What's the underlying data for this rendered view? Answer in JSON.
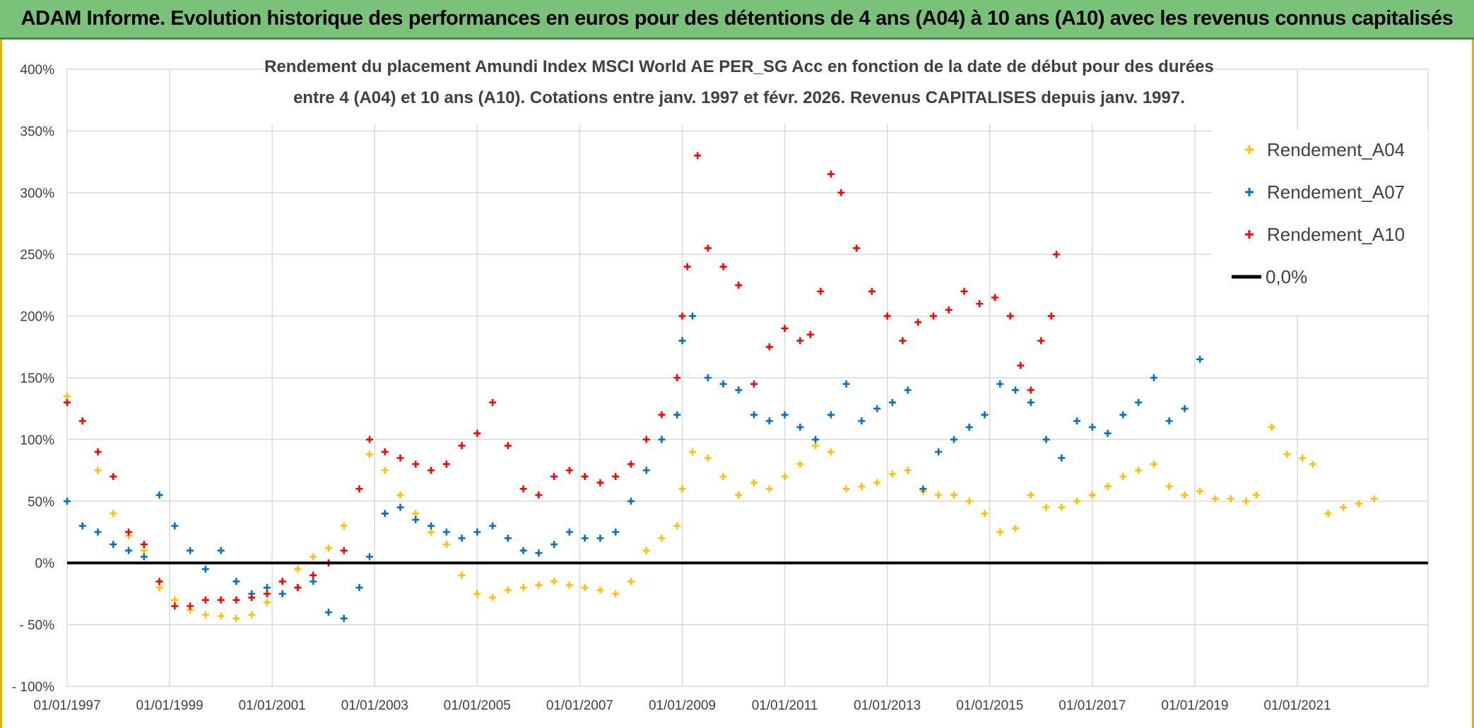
{
  "banner": {
    "text": "ADAM Informe. Evolution historique des performances en euros pour des détentions de 4 ans (A04) à 10 ans (A10) avec les revenus connus capitalisés"
  },
  "colors": {
    "banner_bg": "#7ac27a",
    "A04": "#ffc000",
    "A07": "#0070c0",
    "A10": "#ff0000",
    "zero_line": "#000000",
    "grid": "#d9d9d9"
  },
  "chart_data": {
    "type": "scatter",
    "title_lines": [
      "Rendement du placement Amundi Index MSCI World AE PER_SG Acc en fonction de la date de début pour des durées",
      "entre 4 (A04) et 10 ans (A10). Cotations entre janv. 1997 et févr. 2026. Revenus CAPITALISES depuis janv. 1997."
    ],
    "xlabel": "",
    "ylabel": "",
    "x_tick_labels": [
      "01/01/1997",
      "01/01/1999",
      "01/01/2001",
      "01/01/2003",
      "01/01/2005",
      "01/01/2007",
      "01/01/2009",
      "01/01/2011",
      "01/01/2013",
      "01/01/2015",
      "01/01/2017",
      "01/01/2019",
      "01/01/2021"
    ],
    "y_tick_labels": [
      "400%",
      "350%",
      "300%",
      "250%",
      "200%",
      "150%",
      "100%",
      "50%",
      "0%",
      "- 50%",
      "- 100%"
    ],
    "xlim": [
      1997.0,
      2023.55
    ],
    "ylim": [
      -100,
      400
    ],
    "grid": true,
    "legend_position": "top-right",
    "series": [
      {
        "name": "Rendement_A04",
        "marker": "+",
        "x": [
          1997.0,
          1997.3,
          1997.6,
          1997.9,
          1998.2,
          1998.5,
          1998.8,
          1999.1,
          1999.4,
          1999.7,
          2000.0,
          2000.3,
          2000.6,
          2000.9,
          2001.2,
          2001.5,
          2001.8,
          2002.1,
          2002.4,
          2002.7,
          2002.9,
          2003.2,
          2003.5,
          2003.8,
          2004.1,
          2004.4,
          2004.7,
          2005.0,
          2005.3,
          2005.6,
          2005.9,
          2006.2,
          2006.5,
          2006.8,
          2007.1,
          2007.4,
          2007.7,
          2008.0,
          2008.3,
          2008.6,
          2008.9,
          2009.0,
          2009.2,
          2009.5,
          2009.8,
          2010.1,
          2010.4,
          2010.7,
          2011.0,
          2011.3,
          2011.6,
          2011.9,
          2012.2,
          2012.5,
          2012.8,
          2013.1,
          2013.4,
          2013.7,
          2014.0,
          2014.3,
          2014.6,
          2014.9,
          2015.2,
          2015.5,
          2015.8,
          2016.1,
          2016.4,
          2016.7,
          2017.0,
          2017.3,
          2017.6,
          2017.9,
          2018.2,
          2018.5,
          2018.8,
          2019.1,
          2019.4,
          2019.7,
          2020.0,
          2020.2,
          2020.5,
          2020.8,
          2021.1,
          2021.3,
          2021.6,
          2021.9,
          2022.2,
          2022.5
        ],
        "y": [
          135,
          115,
          75,
          40,
          22,
          10,
          -20,
          -30,
          -38,
          -42,
          -43,
          -45,
          -42,
          -32,
          -15,
          -5,
          5,
          12,
          30,
          60,
          88,
          75,
          55,
          40,
          25,
          15,
          -10,
          -25,
          -28,
          -22,
          -20,
          -18,
          -15,
          -18,
          -20,
          -22,
          -25,
          -15,
          10,
          20,
          30,
          60,
          90,
          85,
          70,
          55,
          65,
          60,
          70,
          80,
          95,
          90,
          60,
          62,
          65,
          72,
          75,
          58,
          55,
          55,
          50,
          40,
          25,
          28,
          55,
          45,
          45,
          50,
          55,
          62,
          70,
          75,
          80,
          62,
          55,
          58,
          52,
          52,
          50,
          55,
          110,
          88,
          85,
          80,
          40,
          45,
          48,
          52
        ]
      },
      {
        "name": "Rendement_A07",
        "marker": "+",
        "x": [
          1997.0,
          1997.3,
          1997.6,
          1997.9,
          1998.2,
          1998.5,
          1998.8,
          1999.1,
          1999.4,
          1999.7,
          2000.0,
          2000.3,
          2000.6,
          2000.9,
          2001.2,
          2001.5,
          2001.8,
          2002.1,
          2002.4,
          2002.7,
          2002.9,
          2003.2,
          2003.5,
          2003.8,
          2004.1,
          2004.4,
          2004.7,
          2005.0,
          2005.3,
          2005.6,
          2005.9,
          2006.2,
          2006.5,
          2006.8,
          2007.1,
          2007.4,
          2007.7,
          2008.0,
          2008.3,
          2008.6,
          2008.9,
          2009.0,
          2009.2,
          2009.5,
          2009.8,
          2010.1,
          2010.4,
          2010.7,
          2011.0,
          2011.3,
          2011.6,
          2011.9,
          2012.2,
          2012.5,
          2012.8,
          2013.1,
          2013.4,
          2013.7,
          2014.0,
          2014.3,
          2014.6,
          2014.9,
          2015.2,
          2015.5,
          2015.8,
          2016.1,
          2016.4,
          2016.7,
          2017.0,
          2017.3,
          2017.6,
          2017.9,
          2018.2,
          2018.5,
          2018.8,
          2019.1
        ],
        "y": [
          50,
          30,
          25,
          15,
          10,
          5,
          55,
          30,
          10,
          -5,
          10,
          -15,
          -25,
          -20,
          -25,
          -20,
          -15,
          -40,
          -45,
          -20,
          5,
          40,
          45,
          35,
          30,
          25,
          20,
          25,
          30,
          20,
          10,
          8,
          15,
          25,
          20,
          20,
          25,
          50,
          75,
          100,
          120,
          180,
          200,
          150,
          145,
          140,
          120,
          115,
          120,
          110,
          100,
          120,
          145,
          115,
          125,
          130,
          140,
          60,
          90,
          100,
          110,
          120,
          145,
          140,
          130,
          100,
          85,
          115,
          110,
          105,
          120,
          130,
          150,
          115,
          125,
          165
        ]
      },
      {
        "name": "Rendement_A10",
        "marker": "+",
        "x": [
          1997.0,
          1997.3,
          1997.6,
          1997.9,
          1998.2,
          1998.5,
          1998.8,
          1999.1,
          1999.4,
          1999.7,
          2000.0,
          2000.3,
          2000.6,
          2000.9,
          2001.2,
          2001.5,
          2001.8,
          2002.1,
          2002.4,
          2002.7,
          2002.9,
          2003.2,
          2003.5,
          2003.8,
          2004.1,
          2004.4,
          2004.7,
          2005.0,
          2005.3,
          2005.6,
          2005.9,
          2006.2,
          2006.5,
          2006.8,
          2007.1,
          2007.4,
          2007.7,
          2008.0,
          2008.3,
          2008.6,
          2008.9,
          2009.0,
          2009.1,
          2009.3,
          2009.5,
          2009.8,
          2010.1,
          2010.4,
          2010.7,
          2011.0,
          2011.3,
          2011.5,
          2011.7,
          2011.9,
          2012.1,
          2012.4,
          2012.7,
          2013.0,
          2013.3,
          2013.6,
          2013.9,
          2014.2,
          2014.5,
          2014.8,
          2015.1,
          2015.4,
          2015.6,
          2015.8,
          2016.0,
          2016.2,
          2016.3
        ],
        "y": [
          130,
          115,
          90,
          70,
          25,
          15,
          -15,
          -35,
          -35,
          -30,
          -30,
          -30,
          -28,
          -25,
          -15,
          -20,
          -10,
          0,
          10,
          60,
          100,
          90,
          85,
          80,
          75,
          80,
          95,
          105,
          130,
          95,
          60,
          55,
          70,
          75,
          70,
          65,
          70,
          80,
          100,
          120,
          150,
          200,
          240,
          330,
          255,
          240,
          225,
          145,
          175,
          190,
          180,
          185,
          220,
          315,
          300,
          255,
          220,
          200,
          180,
          195,
          200,
          205,
          220,
          210,
          215,
          200,
          160,
          140,
          180,
          200,
          250
        ]
      },
      {
        "name": "0,0%",
        "type": "line",
        "y": 0
      }
    ]
  }
}
